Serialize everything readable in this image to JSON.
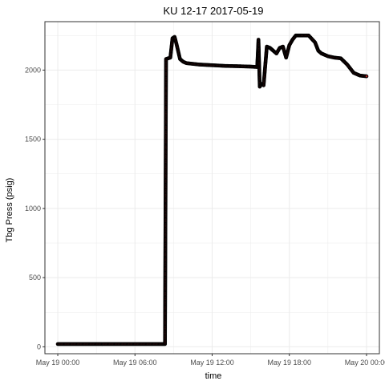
{
  "chart_data": {
    "type": "scatter",
    "title": "KU 12-17 2017-05-19",
    "xlabel": "time",
    "ylabel": "Tbg Press (psig)",
    "x_axis": {
      "type": "datetime",
      "range": [
        "2017-05-18 23:00",
        "2017-05-20 01:00"
      ],
      "ticks": [
        "2017-05-19 00:00",
        "2017-05-19 06:00",
        "2017-05-19 12:00",
        "2017-05-19 18:00",
        "2017-05-20 00:00"
      ],
      "tick_labels": [
        "May 19 00:00",
        "May 19 06:00",
        "May 19 12:00",
        "May 19 18:00",
        "May 20 00:00"
      ]
    },
    "y_axis": {
      "range": [
        -50,
        2350
      ],
      "ticks": [
        0,
        500,
        1000,
        1500,
        2000
      ],
      "tick_labels": [
        "0",
        "500",
        "1000",
        "1500",
        "2000"
      ]
    },
    "grid": true,
    "theme": "bw",
    "colors": {
      "point_outline": "#000000",
      "point_fill": "#b22222",
      "grid": "#ebebeb",
      "panel_border": "#333333"
    },
    "series": [
      {
        "x": [
          "2017-05-19 00:00",
          "2017-05-19 01:00",
          "2017-05-19 02:00",
          "2017-05-19 03:00",
          "2017-05-19 04:00",
          "2017-05-19 05:00",
          "2017-05-19 06:00",
          "2017-05-19 07:00",
          "2017-05-19 08:00",
          "2017-05-19 08:20",
          "2017-05-19 08:25",
          "2017-05-19 08:45",
          "2017-05-19 08:55",
          "2017-05-19 09:05",
          "2017-05-19 09:15",
          "2017-05-19 09:30",
          "2017-05-19 09:45",
          "2017-05-19 10:00",
          "2017-05-19 11:00",
          "2017-05-19 12:00",
          "2017-05-19 13:00",
          "2017-05-19 14:00",
          "2017-05-19 15:00",
          "2017-05-19 15:30",
          "2017-05-19 15:36",
          "2017-05-19 15:42",
          "2017-05-19 15:50",
          "2017-05-19 16:00",
          "2017-05-19 16:15",
          "2017-05-19 16:30",
          "2017-05-19 16:45",
          "2017-05-19 17:00",
          "2017-05-19 17:15",
          "2017-05-19 17:30",
          "2017-05-19 17:45",
          "2017-05-19 18:00",
          "2017-05-19 18:15",
          "2017-05-19 18:30",
          "2017-05-19 18:45",
          "2017-05-19 19:00",
          "2017-05-19 19:30",
          "2017-05-19 20:00",
          "2017-05-19 20:15",
          "2017-05-19 20:30",
          "2017-05-19 21:00",
          "2017-05-19 21:30",
          "2017-05-19 22:00",
          "2017-05-19 22:30",
          "2017-05-19 23:00",
          "2017-05-19 23:30",
          "2017-05-20 00:00"
        ],
        "y": [
          20,
          20,
          20,
          20,
          20,
          20,
          20,
          20,
          20,
          20,
          2080,
          2090,
          2230,
          2240,
          2180,
          2080,
          2060,
          2050,
          2040,
          2035,
          2030,
          2028,
          2025,
          2022,
          2220,
          1880,
          1900,
          1890,
          2170,
          2160,
          2140,
          2120,
          2160,
          2170,
          2090,
          2180,
          2220,
          2250,
          2250,
          2250,
          2250,
          2200,
          2140,
          2120,
          2100,
          2090,
          2085,
          2040,
          1980,
          1960,
          1955
        ]
      }
    ]
  }
}
